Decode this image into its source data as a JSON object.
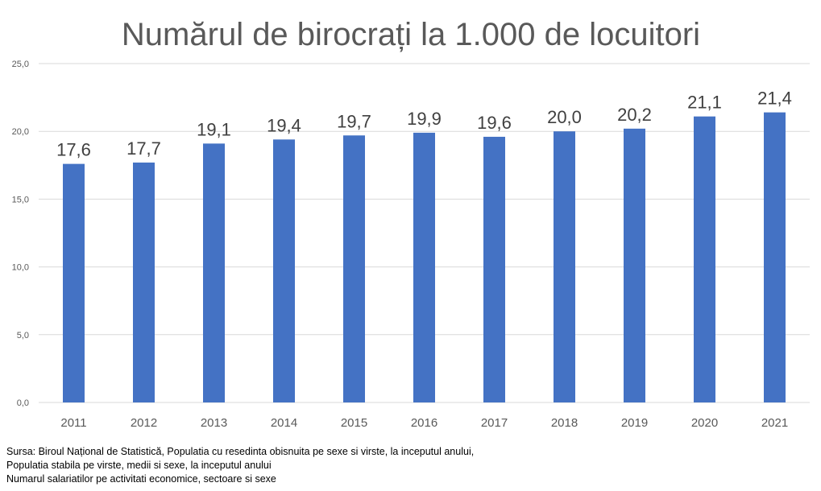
{
  "chart_data": {
    "type": "bar",
    "title": "Numărul de birocrați la 1.000 de locuitori",
    "categories": [
      "2011",
      "2012",
      "2013",
      "2014",
      "2015",
      "2016",
      "2017",
      "2018",
      "2019",
      "2020",
      "2021"
    ],
    "values": [
      17.6,
      17.7,
      19.1,
      19.4,
      19.7,
      19.9,
      19.6,
      20.0,
      20.2,
      21.1,
      21.4
    ],
    "data_labels": [
      "17,6",
      "17,7",
      "19,1",
      "19,4",
      "19,7",
      "19,9",
      "19,6",
      "20,0",
      "20,2",
      "21,1",
      "21,4"
    ],
    "yticks": [
      0,
      5,
      10,
      15,
      20,
      25
    ],
    "ytick_labels": [
      "0,0",
      "5,0",
      "10,0",
      "15,0",
      "20,0",
      "25,0"
    ],
    "ylim": [
      0,
      25
    ],
    "xlabel": "",
    "ylabel": "",
    "grid": true,
    "legend": "none",
    "bar_color": "#4472C4",
    "grid_color": "#D9D9D9"
  },
  "source": {
    "lines": [
      "Sursa: Biroul Național de Statistică, Populatia cu resedinta obisnuita pe sexe si virste, la inceputul anului,",
      "Populatia stabila pe virste, medii si sexe, la inceputul anului",
      "Numarul salariatilor pe activitati economice, sectoare si sexe"
    ]
  }
}
